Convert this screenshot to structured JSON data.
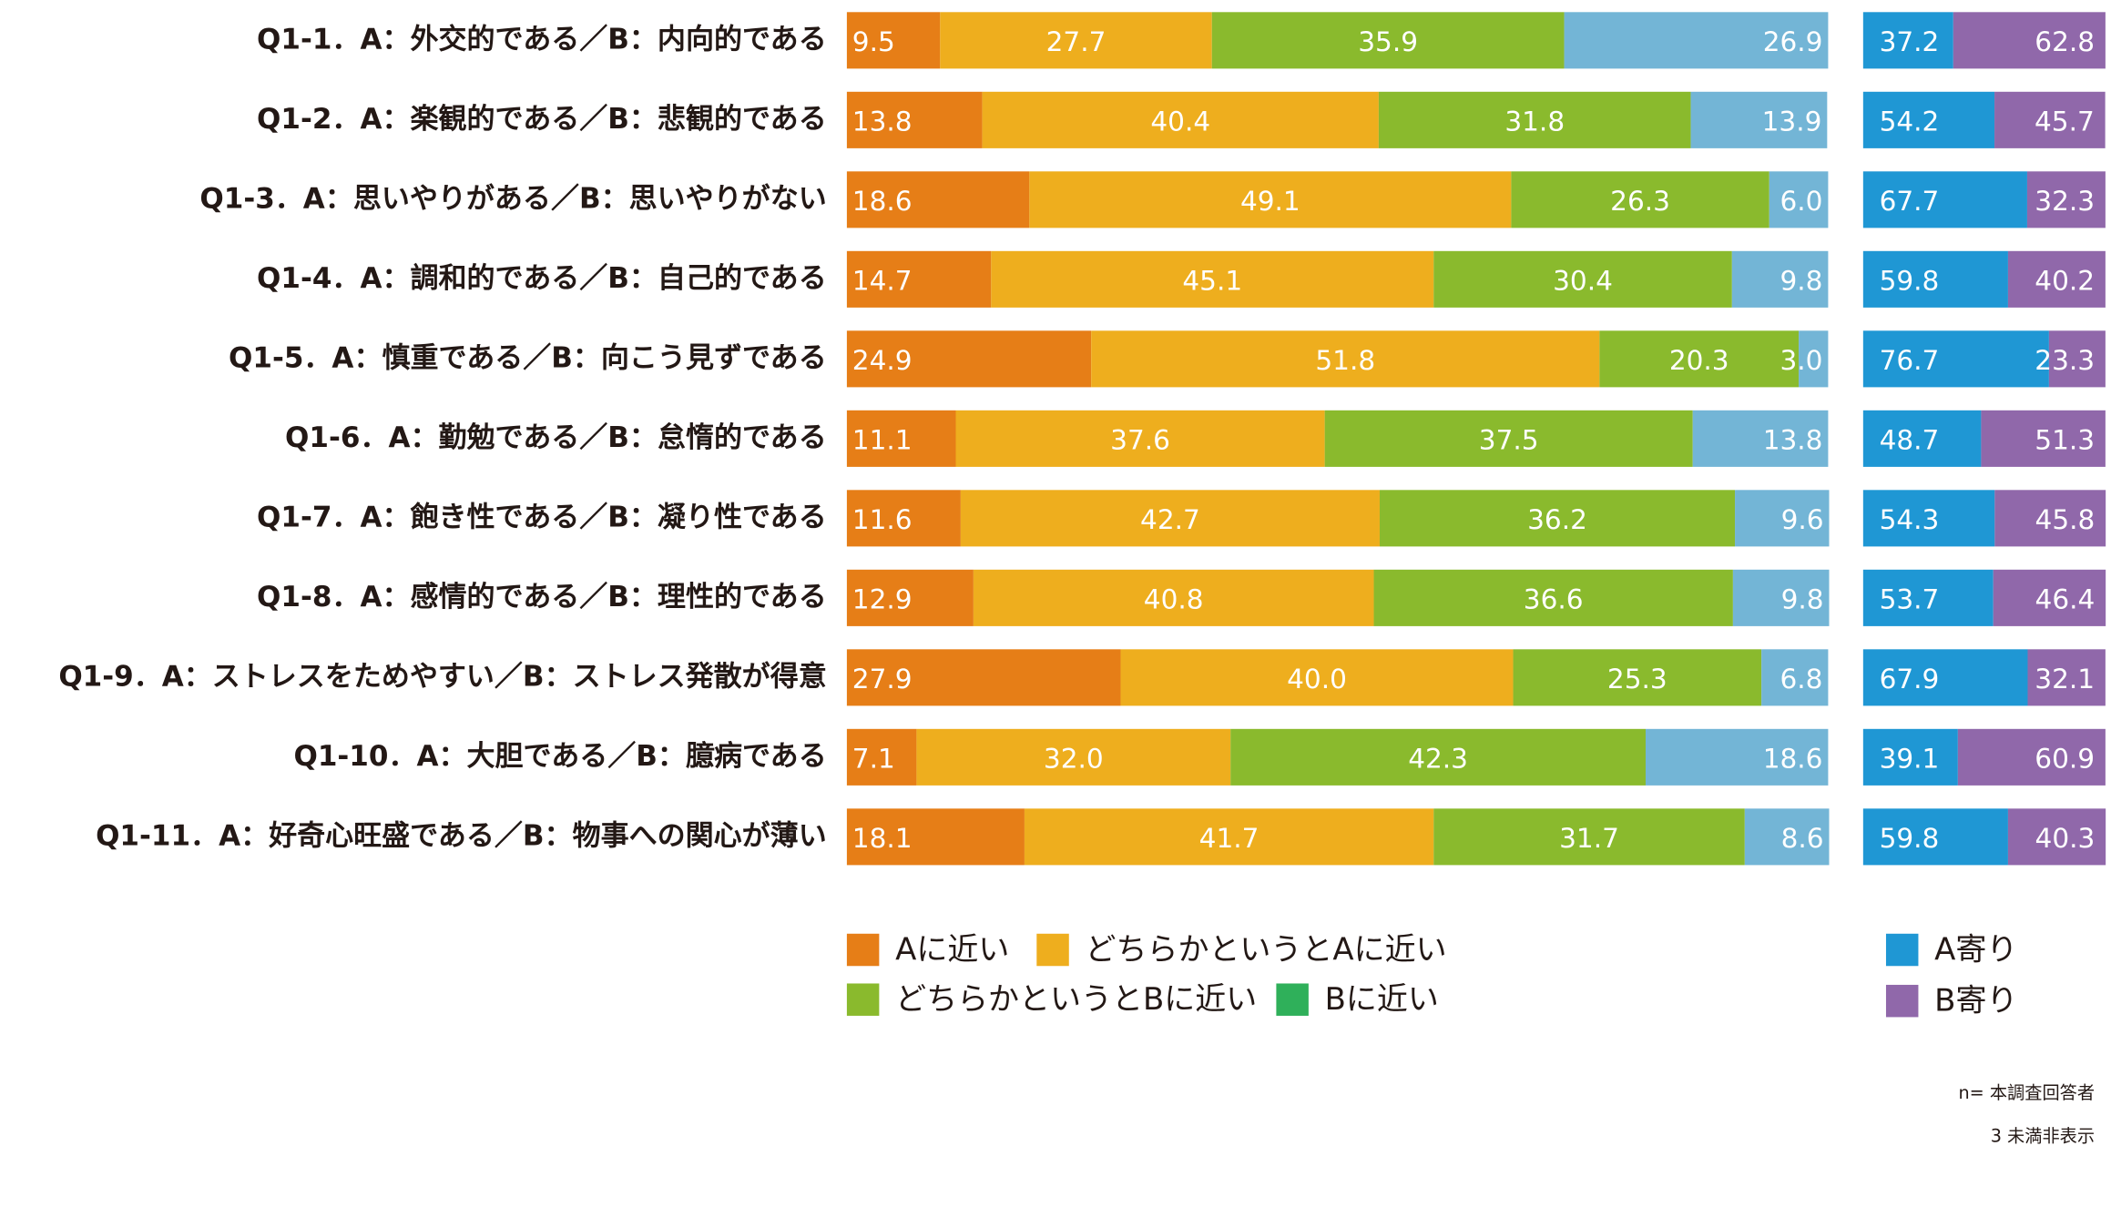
{
  "chart_data": [
    {
      "type": "bar",
      "stacked": true,
      "orientation": "horizontal",
      "xlim": [
        0,
        100
      ],
      "categories": [
        "Q1-1．A：外交的である／B：内向的である",
        "Q1-2．A：楽観的である／B：悲観的である",
        "Q1-3．A：思いやりがある／B：思いやりがない",
        "Q1-4．A：調和的である／B：自己的である",
        "Q1-5．A：慎重である／B：向こう見ずである",
        "Q1-6．A：勤勉である／B：怠惰的である",
        "Q1-7．A：飽き性である／B：凝り性である",
        "Q1-8．A：感情的である／B：理性的である",
        "Q1-9．A：ストレスをためやすい／B：ストレス発散が得意",
        "Q1-10．A：大胆である／B：臆病である",
        "Q1-11．A：好奇心旺盛である／B：物事への関心が薄い"
      ],
      "series": [
        {
          "name": "Aに近い",
          "color": "#e67e17",
          "values": [
            9.5,
            13.8,
            18.6,
            14.7,
            24.9,
            11.1,
            11.6,
            12.9,
            27.9,
            7.1,
            18.1
          ],
          "value_labels": [
            "9.5",
            "13.8",
            "18.6",
            "14.7",
            "24.9",
            "11.1",
            "11.6",
            "12.9",
            "27.9",
            "7.1",
            "18.1"
          ]
        },
        {
          "name": "どちらかというとAに近い",
          "color": "#eeae1e",
          "values": [
            27.7,
            40.4,
            49.1,
            45.1,
            51.8,
            37.6,
            42.7,
            40.8,
            40.0,
            32.0,
            41.7
          ],
          "value_labels": [
            "27.7",
            "40.4",
            "49.1",
            "45.1",
            "51.8",
            "37.6",
            "42.7",
            "40.8",
            "40.0",
            "32.0",
            "41.7"
          ]
        },
        {
          "name": "どちらかというとBに近い",
          "color": "#8aba2d",
          "values": [
            35.9,
            31.8,
            26.3,
            30.4,
            20.3,
            37.5,
            36.2,
            36.6,
            25.3,
            42.3,
            31.7
          ],
          "value_labels": [
            "35.9",
            "31.8",
            "26.3",
            "30.4",
            "20.3",
            "37.5",
            "36.2",
            "36.6",
            "25.3",
            "42.3",
            "31.7"
          ]
        },
        {
          "name": "Bに近い",
          "color": "#73b5d6",
          "legend_color": "#2fb05a",
          "values": [
            26.9,
            13.9,
            6.0,
            9.8,
            3.0,
            13.8,
            9.6,
            9.8,
            6.8,
            18.6,
            8.6
          ],
          "value_labels": [
            "26.9",
            "13.9",
            "6.0",
            "9.8",
            "3.0",
            "13.8",
            "9.6",
            "9.8",
            "6.8",
            "18.6",
            "8.6"
          ]
        }
      ]
    },
    {
      "type": "bar",
      "stacked": true,
      "orientation": "horizontal",
      "xlim": [
        0,
        100
      ],
      "series": [
        {
          "name": "A寄り",
          "color": "#1f97d4",
          "values": [
            37.2,
            54.2,
            67.7,
            59.8,
            76.7,
            48.7,
            54.3,
            53.7,
            67.9,
            39.1,
            59.8
          ],
          "value_labels": [
            "37.2",
            "54.2",
            "67.7",
            "59.8",
            "76.7",
            "48.7",
            "54.3",
            "53.7",
            "67.9",
            "39.1",
            "59.8"
          ]
        },
        {
          "name": "B寄り",
          "color": "#9068aa",
          "values": [
            62.8,
            45.7,
            32.3,
            40.2,
            23.3,
            51.3,
            45.8,
            46.4,
            32.1,
            60.9,
            40.3
          ],
          "value_labels": [
            "62.8",
            "45.7",
            "32.3",
            "40.2",
            "23.3",
            "51.3",
            "45.8",
            "46.4",
            "32.1",
            "60.9",
            "40.3"
          ]
        }
      ]
    }
  ],
  "notes": [
    "n= 本調査回答者",
    "3 未満非表示"
  ]
}
